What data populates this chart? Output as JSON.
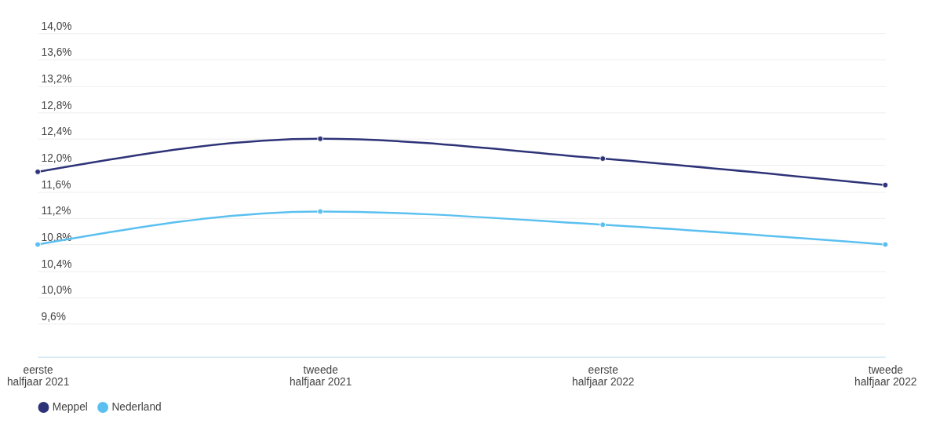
{
  "chart_data": {
    "type": "line",
    "categories": [
      "eerste halfjaar 2021",
      "tweede halfjaar 2021",
      "eerste halfjaar 2022",
      "tweede halfjaar 2022"
    ],
    "series": [
      {
        "name": "Meppel",
        "color": "#2e3378",
        "values": [
          11.9,
          12.4,
          12.1,
          11.7
        ]
      },
      {
        "name": "Nederland",
        "color": "#5bc0f0",
        "values": [
          10.8,
          11.3,
          11.1,
          10.8
        ]
      }
    ],
    "ylim": [
      9.1,
      14.0
    ],
    "yticks": [
      {
        "value": 9.6,
        "label": "9,6%"
      },
      {
        "value": 10.0,
        "label": "10,0%"
      },
      {
        "value": 10.4,
        "label": "10,4%"
      },
      {
        "value": 10.8,
        "label": "10,8%"
      },
      {
        "value": 11.2,
        "label": "11,2%"
      },
      {
        "value": 11.6,
        "label": "11,6%"
      },
      {
        "value": 12.0,
        "label": "12,0%"
      },
      {
        "value": 12.4,
        "label": "12,4%"
      },
      {
        "value": 12.8,
        "label": "12,8%"
      },
      {
        "value": 13.2,
        "label": "13,2%"
      },
      {
        "value": 13.6,
        "label": "13,6%"
      },
      {
        "value": 14.0,
        "label": "14,0%"
      }
    ],
    "grid": "y",
    "legend": "bottom",
    "marker": "circle",
    "line_style": "solid"
  }
}
